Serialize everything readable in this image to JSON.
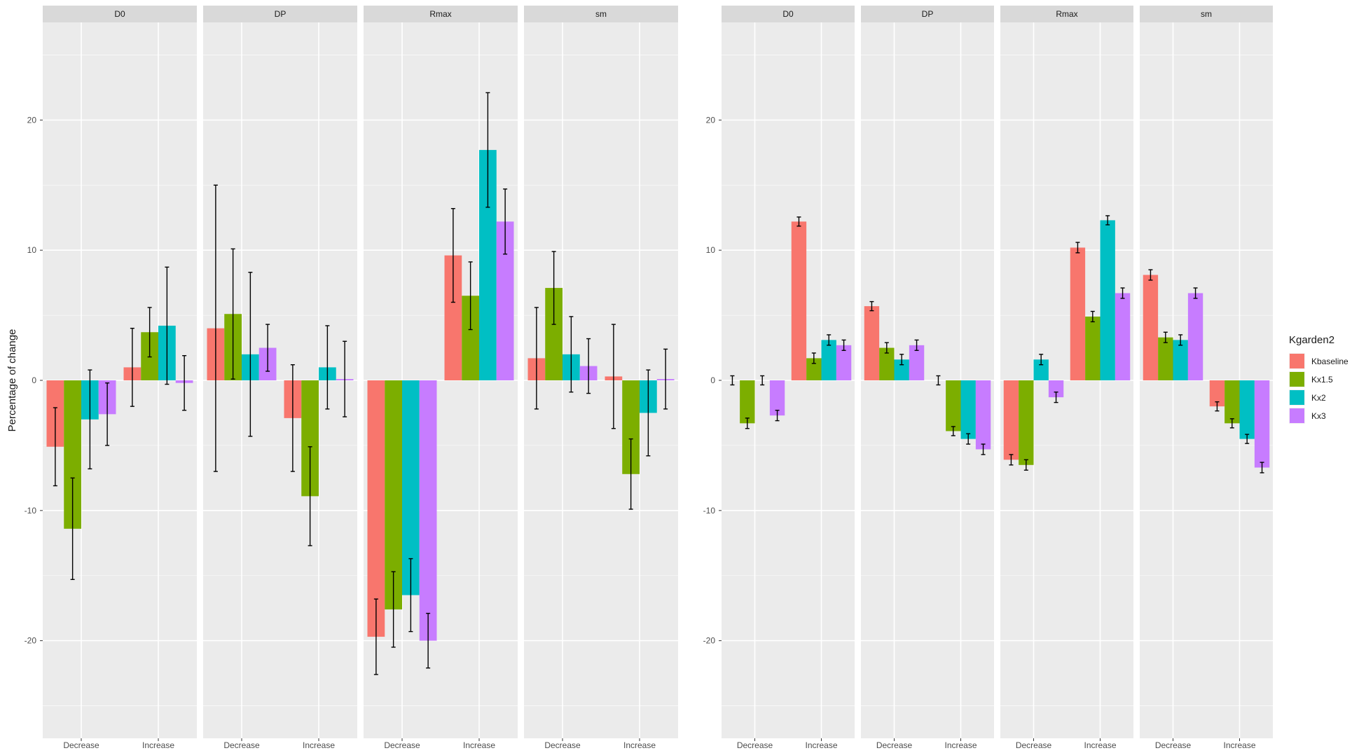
{
  "chart_data": [
    {
      "type": "bar",
      "ylabel": "Percentage of change",
      "ylim": [
        -27.5,
        27.5
      ],
      "yticks": [
        -20,
        -10,
        0,
        10,
        20
      ],
      "grid": true,
      "categories": [
        "Decrease",
        "Increase"
      ],
      "series_names": [
        "Kbaseline",
        "Kx1.5",
        "Kx2",
        "Kx3"
      ],
      "facets": [
        {
          "label": "D0",
          "groups": [
            {
              "category": "Decrease",
              "values": [
                -5.1,
                -11.4,
                -3.0,
                -2.6
              ],
              "errors": [
                3.0,
                3.9,
                3.8,
                2.4
              ]
            },
            {
              "category": "Increase",
              "values": [
                1.0,
                3.7,
                4.2,
                -0.2
              ],
              "errors": [
                3.0,
                1.9,
                4.5,
                2.1
              ]
            }
          ]
        },
        {
          "label": "DP",
          "groups": [
            {
              "category": "Decrease",
              "values": [
                4.0,
                5.1,
                2.0,
                2.5
              ],
              "errors": [
                11.0,
                5.0,
                6.3,
                1.8
              ]
            },
            {
              "category": "Increase",
              "values": [
                -2.9,
                -8.9,
                1.0,
                0.1
              ],
              "errors": [
                4.1,
                3.8,
                3.2,
                2.9
              ]
            }
          ]
        },
        {
          "label": "Rmax",
          "groups": [
            {
              "category": "Decrease",
              "values": [
                -19.7,
                -17.6,
                -16.5,
                -20.0
              ],
              "errors": [
                2.9,
                2.9,
                2.8,
                2.1
              ]
            },
            {
              "category": "Increase",
              "values": [
                9.6,
                6.5,
                17.7,
                12.2
              ],
              "errors": [
                3.6,
                2.6,
                4.4,
                2.5
              ]
            }
          ]
        },
        {
          "label": "sm",
          "groups": [
            {
              "category": "Decrease",
              "values": [
                1.7,
                7.1,
                2.0,
                1.1
              ],
              "errors": [
                3.9,
                2.8,
                2.9,
                2.1
              ]
            },
            {
              "category": "Increase",
              "values": [
                0.3,
                -7.2,
                -2.5,
                0.1
              ],
              "errors": [
                4.0,
                2.7,
                3.3,
                2.3
              ]
            }
          ]
        }
      ]
    },
    {
      "type": "bar",
      "ylim": [
        -27.5,
        27.5
      ],
      "yticks": [
        -20,
        -10,
        0,
        10,
        20
      ],
      "grid": true,
      "categories": [
        "Decrease",
        "Increase"
      ],
      "legend": {
        "title": "Kgarden2",
        "entries": [
          "Kbaseline",
          "Kx1.5",
          "Kx2",
          "Kx3"
        ],
        "position": "right"
      },
      "facets": [
        {
          "label": "D0",
          "groups": [
            {
              "category": "Decrease",
              "values": [
                0.0,
                -3.3,
                0.0,
                -2.7
              ],
              "errors": [
                0.35,
                0.4,
                0.35,
                0.4
              ]
            },
            {
              "category": "Increase",
              "values": [
                12.2,
                1.7,
                3.1,
                2.7
              ],
              "errors": [
                0.35,
                0.4,
                0.4,
                0.4
              ]
            }
          ]
        },
        {
          "label": "DP",
          "groups": [
            {
              "category": "Decrease",
              "values": [
                5.7,
                2.5,
                1.6,
                2.7
              ],
              "errors": [
                0.35,
                0.4,
                0.4,
                0.4
              ]
            },
            {
              "category": "Increase",
              "values": [
                0.0,
                -3.9,
                -4.5,
                -5.3
              ],
              "errors": [
                0.35,
                0.35,
                0.4,
                0.4
              ]
            }
          ]
        },
        {
          "label": "Rmax",
          "groups": [
            {
              "category": "Decrease",
              "values": [
                -6.1,
                -6.5,
                1.6,
                -1.3
              ],
              "errors": [
                0.4,
                0.4,
                0.4,
                0.4
              ]
            },
            {
              "category": "Increase",
              "values": [
                10.2,
                4.9,
                12.3,
                6.7
              ],
              "errors": [
                0.4,
                0.4,
                0.35,
                0.4
              ]
            }
          ]
        },
        {
          "label": "sm",
          "groups": [
            {
              "category": "Decrease",
              "values": [
                8.1,
                3.3,
                3.1,
                6.7
              ],
              "errors": [
                0.4,
                0.4,
                0.4,
                0.4
              ]
            },
            {
              "category": "Increase",
              "values": [
                -2.0,
                -3.3,
                -4.5,
                -6.7
              ],
              "errors": [
                0.35,
                0.35,
                0.35,
                0.4
              ]
            }
          ]
        }
      ]
    }
  ],
  "colors": {
    "Kbaseline": "#F8766D",
    "Kx1.5": "#7CAE00",
    "Kx2": "#00BFC4",
    "Kx3": "#C77CFF",
    "panel_bg": "#EBEBEB",
    "strip_bg": "#D9D9D9",
    "grid": "#FFFFFF",
    "error_bar": "#000000"
  }
}
